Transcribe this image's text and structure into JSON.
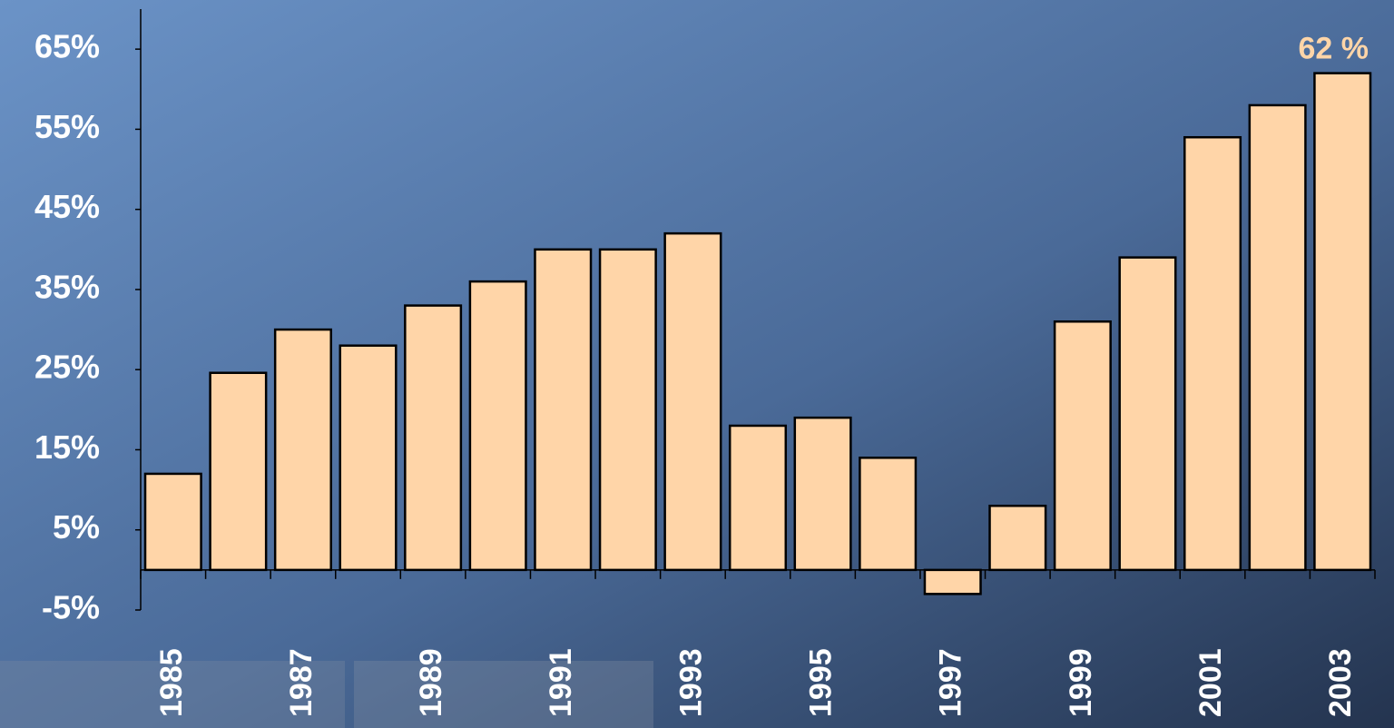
{
  "chart_data": {
    "type": "bar",
    "categories": [
      "1985",
      null,
      "1987",
      null,
      "1989",
      null,
      "1991",
      null,
      "1993",
      null,
      "1995",
      null,
      "1997",
      null,
      "1999",
      null,
      "2001",
      null,
      "2003"
    ],
    "values": [
      12,
      24.6,
      30,
      28,
      33,
      36,
      40,
      40,
      42,
      18,
      19,
      14,
      -3,
      8,
      31,
      39,
      54,
      58,
      62
    ],
    "value_labels": [
      null,
      null,
      null,
      null,
      null,
      null,
      null,
      null,
      null,
      null,
      null,
      null,
      null,
      null,
      null,
      null,
      null,
      null,
      "62 %"
    ],
    "color": "#ffd5a8",
    "ylim": [
      -5,
      70
    ],
    "yticks": [
      {
        "value": -5,
        "label": "-5%"
      },
      {
        "value": 5,
        "label": "5%"
      },
      {
        "value": 15,
        "label": "15%"
      },
      {
        "value": 25,
        "label": "25%"
      },
      {
        "value": 35,
        "label": "35%"
      },
      {
        "value": 45,
        "label": "45%"
      },
      {
        "value": 55,
        "label": "55%"
      },
      {
        "value": 65,
        "label": "65%"
      }
    ],
    "grid": false
  }
}
